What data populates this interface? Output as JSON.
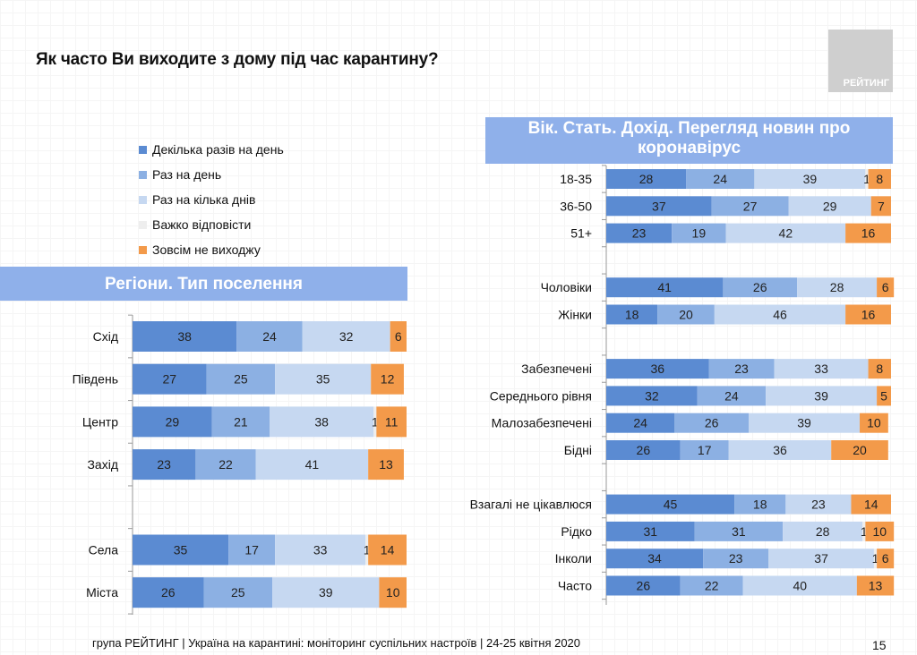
{
  "title": "Як часто Ви виходите з дому під час карантину?",
  "logo_text": "РЕЙТИНГ",
  "footer": "група РЕЙТИНГ | Україна на карантині: моніторинг суспільних настроїв  | 24-25 квітня  2020",
  "page_number": "15",
  "colors": {
    "c1": "#5b8bd2",
    "c2": "#8cb0e3",
    "c3": "#c6d8f1",
    "c4": "#eeeeee",
    "c5": "#f39a4a"
  },
  "legend": [
    {
      "label": "Декілька разів на день",
      "color": "#5b8bd2"
    },
    {
      "label": "Раз на день",
      "color": "#8cb0e3"
    },
    {
      "label": "Раз на кілька днів",
      "color": "#c6d8f1"
    },
    {
      "label": "Важко відповісти",
      "color": "#eeeeee"
    },
    {
      "label": "Зовсім не виходжу",
      "color": "#f39a4a"
    }
  ],
  "chart_data": [
    {
      "type": "bar",
      "stacked": true,
      "orientation": "horizontal",
      "title": "Регіони. Тип поселення",
      "series_names": [
        "Декілька разів на день",
        "Раз на день",
        "Раз на кілька днів",
        "Важко відповісти",
        "Зовсім не виходжу"
      ],
      "categories": [
        "Схід",
        "Південь",
        "Центр",
        "Захід",
        "",
        "Села",
        "Міста"
      ],
      "values": [
        [
          38,
          24,
          32,
          0,
          6
        ],
        [
          27,
          25,
          35,
          0,
          12
        ],
        [
          29,
          21,
          38,
          1,
          11
        ],
        [
          23,
          22,
          41,
          0,
          13
        ],
        null,
        [
          35,
          17,
          33,
          1,
          14
        ],
        [
          26,
          25,
          39,
          0,
          10
        ]
      ]
    },
    {
      "type": "bar",
      "stacked": true,
      "orientation": "horizontal",
      "title": "Вік. Стать. Дохід. Перегляд новин про коронавірус",
      "series_names": [
        "Декілька разів на день",
        "Раз на день",
        "Раз на кілька днів",
        "Важко відповісти",
        "Зовсім не виходжу"
      ],
      "categories": [
        "18-35",
        "36-50",
        "51+",
        "",
        "Чоловіки",
        "Жінки",
        "",
        "Забезпечені",
        "Середнього рівня",
        "Малозабезпечені",
        "Бідні",
        "",
        "Взагалі не цікавлюся",
        "Рідко",
        "Інколи",
        "Часто"
      ],
      "values": [
        [
          28,
          24,
          39,
          1,
          8
        ],
        [
          37,
          27,
          29,
          0,
          7
        ],
        [
          23,
          19,
          42,
          0,
          16
        ],
        null,
        [
          41,
          26,
          28,
          0,
          6
        ],
        [
          18,
          20,
          46,
          0,
          16
        ],
        null,
        [
          36,
          23,
          33,
          0,
          8
        ],
        [
          32,
          24,
          39,
          0,
          5
        ],
        [
          24,
          26,
          39,
          0,
          10
        ],
        [
          26,
          17,
          36,
          0,
          20
        ],
        null,
        [
          45,
          18,
          23,
          0,
          14
        ],
        [
          31,
          31,
          28,
          1,
          10
        ],
        [
          34,
          23,
          37,
          1,
          6
        ],
        [
          26,
          22,
          40,
          0,
          13
        ]
      ]
    }
  ]
}
